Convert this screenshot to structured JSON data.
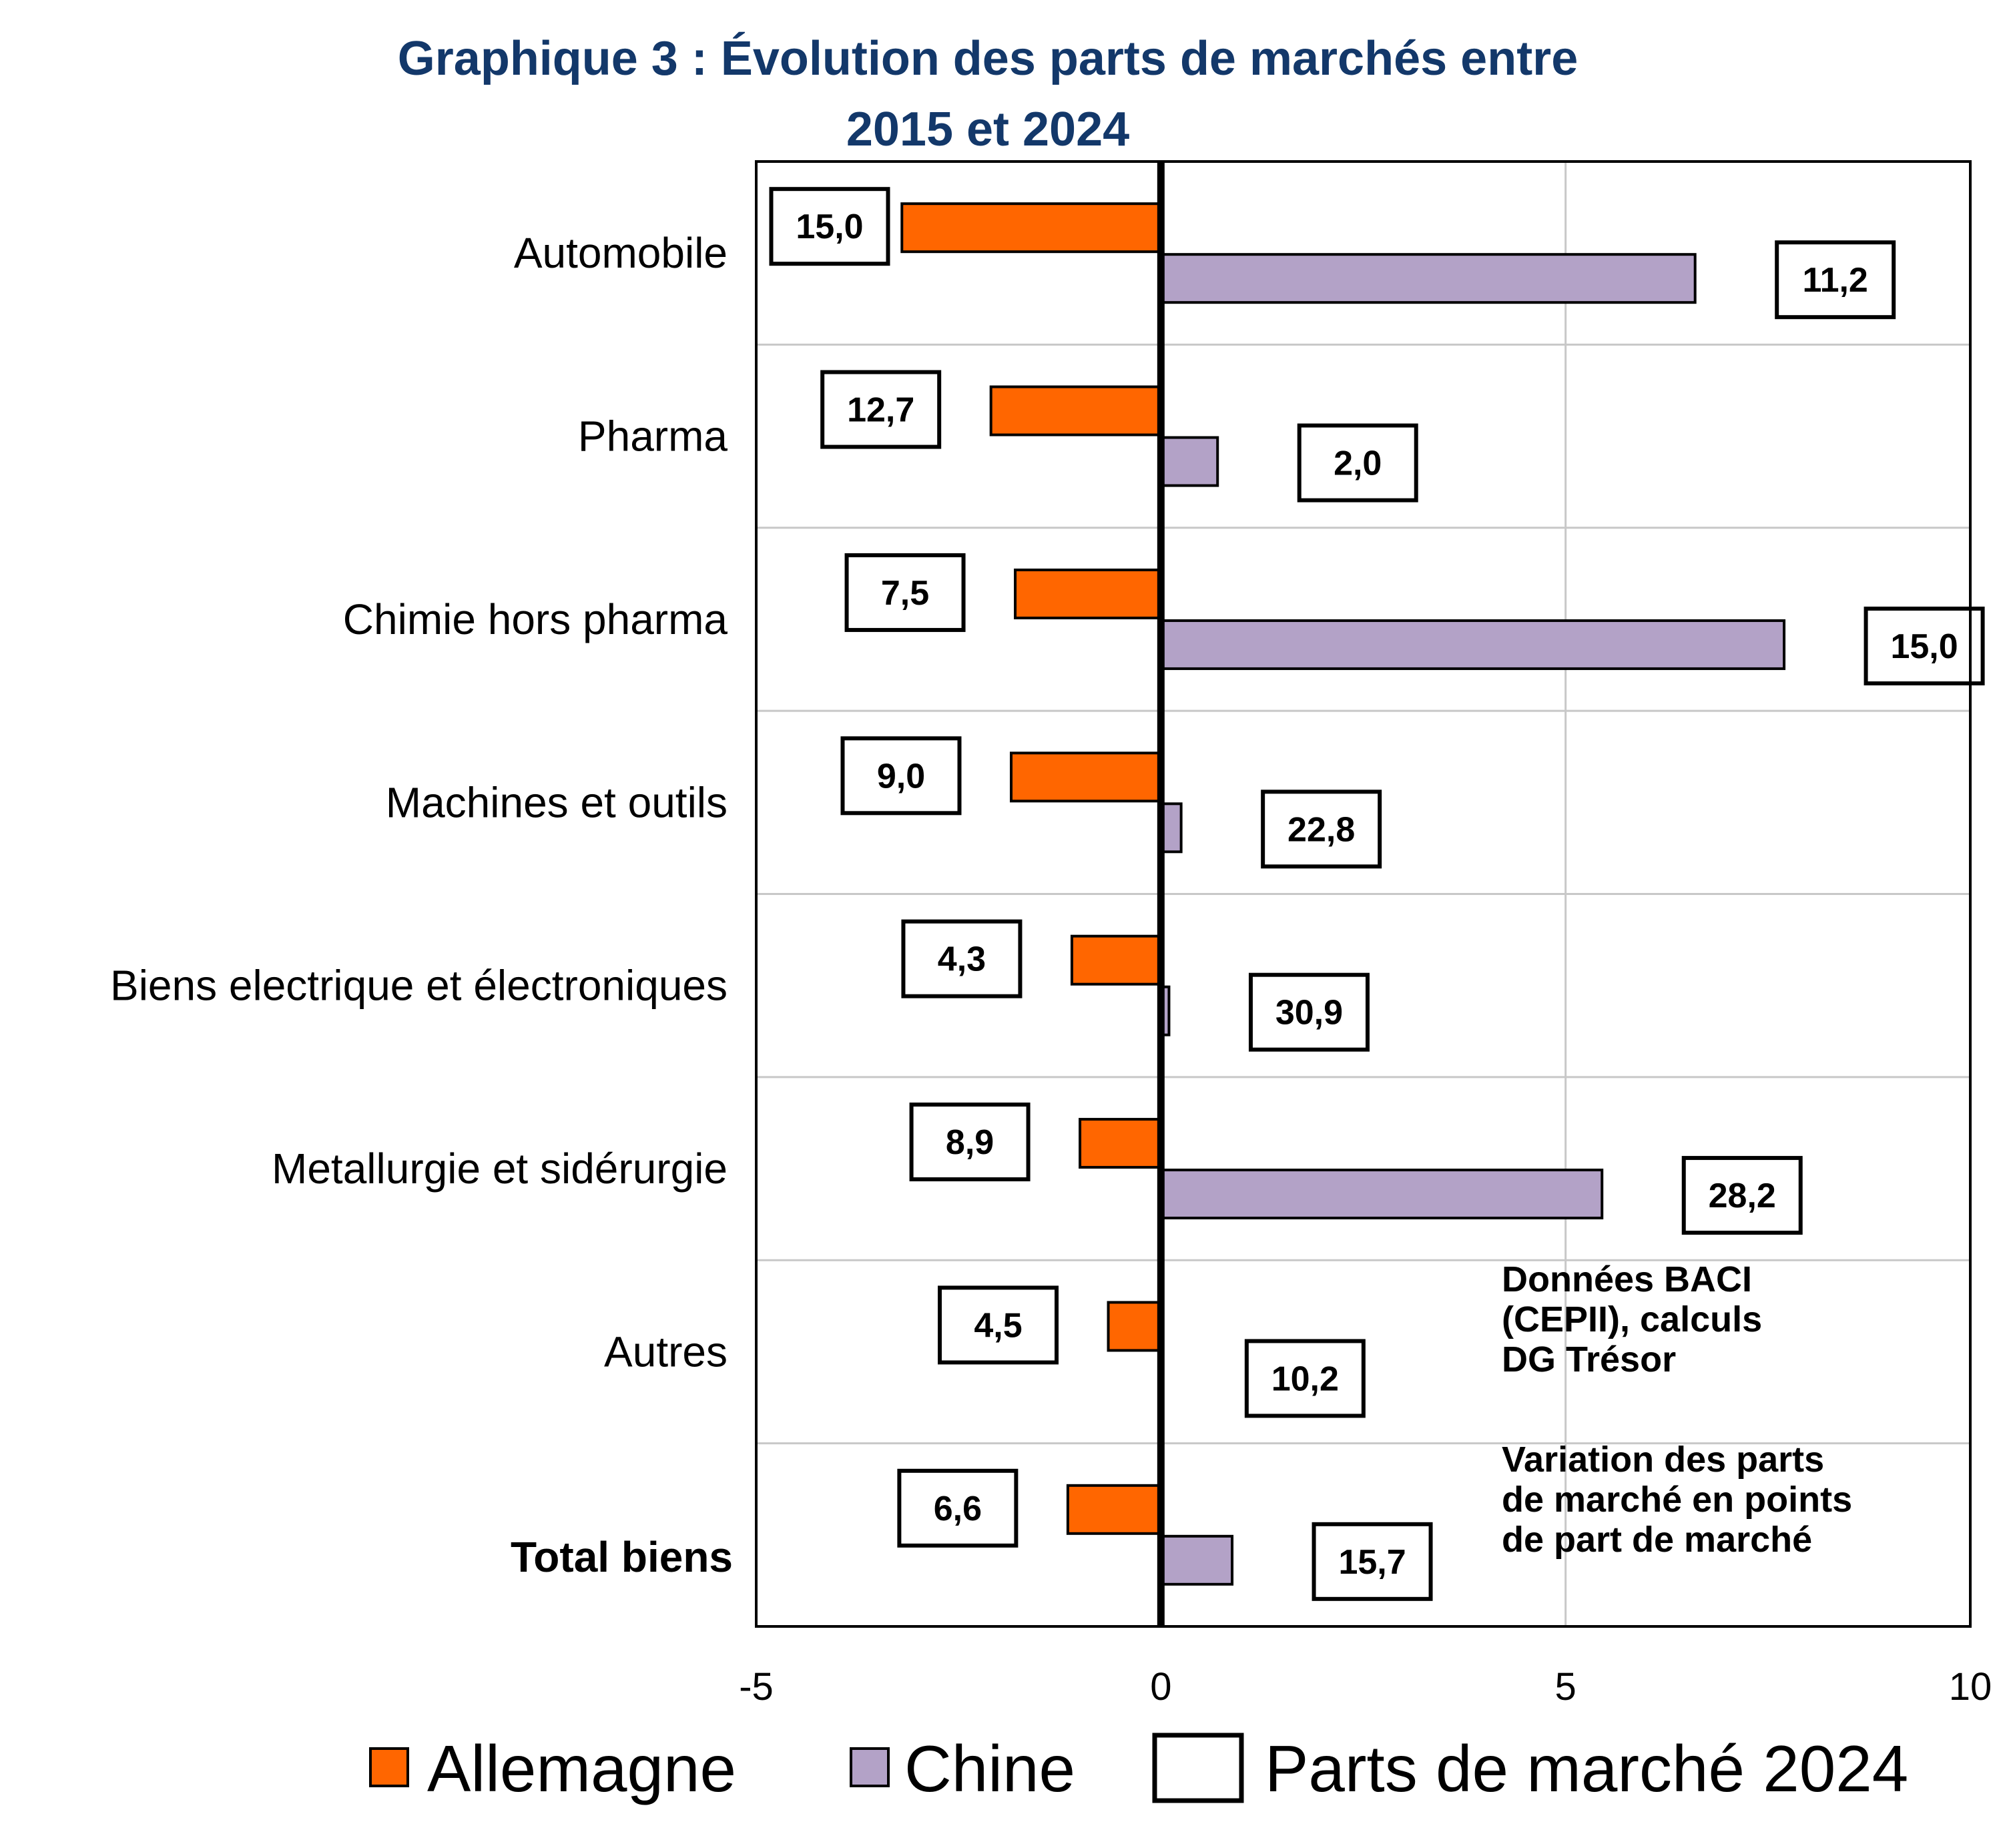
{
  "chart_data": {
    "type": "bar",
    "orientation": "horizontal",
    "title": [
      "Graphique 3 : Évolution des parts de marchés entre",
      "2015 et 2024"
    ],
    "categories": [
      "Automobile",
      "Pharma",
      "Chimie hors pharma",
      "Machines  et outils",
      "Biens electrique et électroniques",
      "Metallurgie et sidérurgie",
      "Autres",
      "Total biens"
    ],
    "bold_categories": [
      "Total biens"
    ],
    "series": [
      {
        "name": "Allemagne",
        "color": "#ff6600",
        "values": [
          -3.2,
          -2.1,
          -1.8,
          -1.85,
          -1.1,
          -1.0,
          -0.65,
          -1.15
        ]
      },
      {
        "name": "Chine",
        "color": "#b3a2c7",
        "values": [
          6.6,
          0.7,
          7.7,
          0.25,
          0.1,
          5.45,
          0.0,
          0.88
        ]
      }
    ],
    "market_share_2024": {
      "name": "Parts de marché 2024",
      "Allemagne": [
        "15,0",
        "12,7",
        "7,5",
        "9,0",
        "4,3",
        "8,9",
        "4,5",
        "6,6"
      ],
      "Chine": [
        "11,2",
        "2,0",
        "15,0",
        "22,8",
        "30,9",
        "28,2",
        "10,2",
        "15,7"
      ]
    },
    "xlim": [
      -5,
      10
    ],
    "xticks": [
      -5,
      0,
      5,
      10
    ],
    "xtick_labels": [
      "-5",
      "0",
      "5",
      "10"
    ],
    "grid": true,
    "legend_position": "bottom",
    "annotations": [
      [
        "Données BACI",
        "(CEPII), calculs",
        "DG Trésor"
      ],
      [
        "Variation des parts",
        "de marché en points",
        "de part de marché"
      ]
    ]
  },
  "colors": {
    "title": "#13386a",
    "grid": "#c8c8c8",
    "axis": "#000000"
  }
}
